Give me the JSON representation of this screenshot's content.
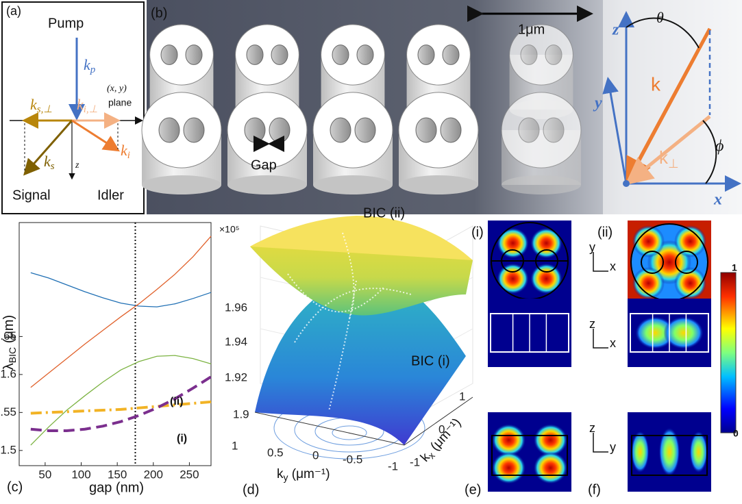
{
  "panels": {
    "a": {
      "tag": "(a)",
      "pump": "Pump",
      "kp": {
        "main": "k",
        "sub": "p"
      },
      "plane_xy": "(x, y)",
      "plane": "plane",
      "ks_perp": {
        "main": "k",
        "sub": "s,⊥"
      },
      "ki_perp": {
        "main": "k",
        "sub": "i,⊥"
      },
      "ks": {
        "main": "k",
        "sub": "s"
      },
      "ki": {
        "main": "k",
        "sub": "i"
      },
      "z": "z",
      "signal": "Signal",
      "idler": "Idler"
    },
    "b": {
      "tag": "(b)",
      "scale": "1μm",
      "gap": "Gap",
      "z": "z",
      "theta": "θ",
      "y": "y",
      "k": "k",
      "k_perp": {
        "main": "k",
        "sub": "⊥"
      },
      "phi": "ϕ",
      "x": "x"
    },
    "c": {
      "tag": "(c)",
      "chart_data": {
        "type": "line",
        "xlabel": "gap (nm)",
        "ylabel": {
          "main": "λ",
          "sub": "BIC",
          "unit": " (μm)"
        },
        "x": [
          30,
          55,
          80,
          105,
          130,
          155,
          180,
          205,
          230,
          255,
          280
        ],
        "series": [
          {
            "color": "#1f6fb4",
            "style": "solid",
            "values": [
              1.734,
              1.727,
              1.718,
              1.709,
              1.701,
              1.694,
              1.69,
              1.689,
              1.693,
              1.7,
              1.708
            ]
          },
          {
            "color": "#e0602a",
            "style": "solid",
            "values": [
              1.583,
              1.602,
              1.621,
              1.64,
              1.658,
              1.676,
              1.693,
              1.712,
              1.732,
              1.755,
              1.782
            ]
          },
          {
            "color": "#7cb342",
            "style": "solid",
            "values": [
              1.507,
              1.531,
              1.553,
              1.572,
              1.59,
              1.606,
              1.617,
              1.624,
              1.625,
              1.621,
              1.614
            ]
          },
          {
            "color": "#f2b325",
            "style": "dashdot",
            "values": [
              1.549,
              1.55,
              1.551,
              1.552,
              1.553,
              1.554,
              1.556,
              1.558,
              1.56,
              1.562,
              1.564
            ]
          },
          {
            "color": "#7b2f8e",
            "style": "dashed",
            "values": [
              1.528,
              1.526,
              1.526,
              1.528,
              1.532,
              1.538,
              1.546,
              1.556,
              1.568,
              1.582,
              1.597
            ]
          }
        ],
        "annotations": [
          "(ii)",
          "(i)"
        ],
        "marker_x": 175,
        "xlim": [
          14,
          280
        ],
        "ylim": [
          1.48,
          1.8
        ],
        "xticks": [
          50,
          100,
          150,
          200,
          250
        ],
        "yticks": [
          1.5,
          1.55,
          1.6,
          1.65
        ]
      }
    },
    "d": {
      "tag": "(d)",
      "multiplier": "×10⁵",
      "zticks": [
        "1.9",
        "1.92",
        "1.94",
        "1.96"
      ],
      "bic2": "BIC (ii)",
      "bic1": "BIC (i)",
      "kyticks": [
        "1",
        "0.5",
        "0",
        "-0.5",
        "-1"
      ],
      "kxticks": [
        "1",
        "0",
        "-1"
      ],
      "kylabel": {
        "main": "k",
        "sub": "y",
        "unit": " (μm⁻¹)"
      },
      "kxlabel": {
        "main": "k",
        "sub": "x",
        "unit": " (μm⁻¹)"
      }
    },
    "e": {
      "tag": "(e)",
      "mode": "(i)"
    },
    "f": {
      "tag": "(f)",
      "mode": "(ii)"
    },
    "axes": [
      {
        "v": "y",
        "h": "x"
      },
      {
        "v": "z",
        "h": "x"
      },
      {
        "v": "z",
        "h": "y"
      }
    ],
    "colorbar": {
      "max": "1",
      "min": "0"
    }
  }
}
